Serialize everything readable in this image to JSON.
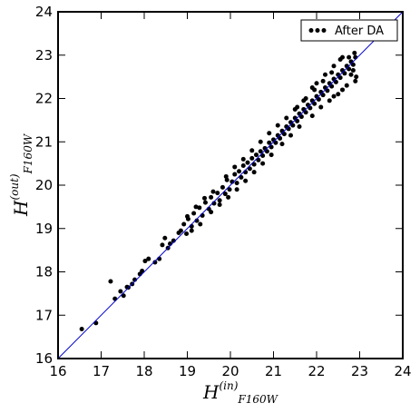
{
  "chart_data": {
    "type": "scatter",
    "title": "",
    "xlabel": {
      "base": "H",
      "sup": "(in)",
      "sub": "F160W"
    },
    "ylabel": {
      "base": "H",
      "sup": "(out)",
      "sub": "F160W"
    },
    "xlim": [
      16,
      24
    ],
    "ylim": [
      16,
      24
    ],
    "xticks": [
      "16",
      "17",
      "18",
      "19",
      "20",
      "21",
      "22",
      "23",
      "24"
    ],
    "yticks": [
      "16",
      "17",
      "18",
      "19",
      "20",
      "21",
      "22",
      "23",
      "24"
    ],
    "grid": false,
    "legend": {
      "position": "top-right"
    },
    "reference_line": {
      "label": "",
      "x": [
        16,
        24
      ],
      "y": [
        16,
        24
      ],
      "color": "#0000cc"
    },
    "series": [
      {
        "name": "After DA",
        "color": "#000000",
        "marker": "dot",
        "points": [
          [
            16.55,
            16.68
          ],
          [
            16.88,
            16.82
          ],
          [
            17.22,
            17.78
          ],
          [
            17.32,
            17.38
          ],
          [
            17.45,
            17.55
          ],
          [
            17.52,
            17.45
          ],
          [
            17.63,
            17.64
          ],
          [
            17.72,
            17.72
          ],
          [
            17.78,
            17.82
          ],
          [
            17.95,
            18.02
          ],
          [
            18.02,
            18.25
          ],
          [
            18.25,
            18.22
          ],
          [
            18.35,
            18.3
          ],
          [
            18.42,
            18.62
          ],
          [
            18.48,
            18.78
          ],
          [
            18.55,
            18.55
          ],
          [
            18.68,
            18.72
          ],
          [
            18.85,
            18.95
          ],
          [
            18.92,
            19.1
          ],
          [
            18.98,
            18.88
          ],
          [
            19.02,
            19.22
          ],
          [
            19.1,
            19.05
          ],
          [
            19.15,
            19.35
          ],
          [
            19.22,
            19.18
          ],
          [
            19.28,
            19.48
          ],
          [
            19.35,
            19.3
          ],
          [
            19.42,
            19.6
          ],
          [
            19.5,
            19.45
          ],
          [
            19.55,
            19.72
          ],
          [
            19.62,
            19.58
          ],
          [
            19.7,
            19.82
          ],
          [
            19.75,
            19.65
          ],
          [
            19.82,
            19.95
          ],
          [
            19.88,
            19.8
          ],
          [
            19.92,
            20.12
          ],
          [
            19.98,
            19.9
          ],
          [
            20.04,
            20.08
          ],
          [
            20.1,
            20.25
          ],
          [
            20.15,
            20.05
          ],
          [
            20.2,
            20.32
          ],
          [
            20.25,
            20.18
          ],
          [
            20.3,
            20.45
          ],
          [
            20.35,
            20.3
          ],
          [
            20.4,
            20.52
          ],
          [
            20.45,
            20.38
          ],
          [
            20.5,
            20.62
          ],
          [
            20.55,
            20.48
          ],
          [
            20.6,
            20.7
          ],
          [
            20.65,
            20.58
          ],
          [
            20.7,
            20.78
          ],
          [
            20.75,
            20.68
          ],
          [
            20.8,
            20.85
          ],
          [
            20.85,
            20.78
          ],
          [
            20.9,
            20.98
          ],
          [
            20.95,
            20.88
          ],
          [
            21.0,
            21.05
          ],
          [
            21.05,
            20.98
          ],
          [
            21.1,
            21.15
          ],
          [
            21.15,
            21.08
          ],
          [
            21.2,
            21.25
          ],
          [
            21.25,
            21.18
          ],
          [
            21.3,
            21.35
          ],
          [
            21.35,
            21.3
          ],
          [
            21.4,
            21.45
          ],
          [
            21.45,
            21.38
          ],
          [
            21.5,
            21.55
          ],
          [
            21.55,
            21.48
          ],
          [
            21.6,
            21.65
          ],
          [
            21.65,
            21.58
          ],
          [
            21.7,
            21.75
          ],
          [
            21.75,
            21.68
          ],
          [
            21.8,
            21.85
          ],
          [
            21.85,
            21.78
          ],
          [
            21.9,
            21.95
          ],
          [
            21.95,
            21.88
          ],
          [
            22.0,
            22.05
          ],
          [
            22.05,
            21.98
          ],
          [
            22.1,
            22.15
          ],
          [
            22.15,
            22.08
          ],
          [
            22.2,
            22.25
          ],
          [
            22.25,
            22.18
          ],
          [
            22.3,
            22.35
          ],
          [
            22.35,
            22.28
          ],
          [
            22.4,
            22.45
          ],
          [
            22.45,
            22.38
          ],
          [
            22.5,
            22.55
          ],
          [
            22.55,
            22.48
          ],
          [
            22.6,
            22.65
          ],
          [
            22.65,
            22.58
          ],
          [
            22.7,
            22.75
          ],
          [
            22.75,
            22.68
          ],
          [
            22.8,
            22.85
          ],
          [
            22.85,
            22.78
          ],
          [
            22.9,
            22.95
          ],
          [
            22.92,
            22.5
          ],
          [
            22.88,
            23.05
          ],
          [
            22.6,
            22.95
          ],
          [
            22.4,
            22.75
          ],
          [
            22.2,
            22.55
          ],
          [
            22.0,
            22.35
          ],
          [
            21.9,
            22.25
          ],
          [
            21.7,
            21.95
          ],
          [
            21.5,
            21.75
          ],
          [
            21.3,
            21.55
          ],
          [
            21.1,
            21.38
          ],
          [
            20.9,
            21.2
          ],
          [
            20.7,
            21.0
          ],
          [
            20.5,
            20.8
          ],
          [
            20.3,
            20.6
          ],
          [
            20.1,
            20.42
          ],
          [
            19.9,
            20.2
          ],
          [
            19.6,
            19.85
          ],
          [
            19.4,
            19.7
          ],
          [
            19.2,
            19.5
          ],
          [
            19.0,
            19.28
          ],
          [
            18.8,
            18.9
          ],
          [
            18.6,
            18.65
          ],
          [
            18.1,
            18.3
          ],
          [
            17.9,
            17.95
          ],
          [
            17.6,
            17.65
          ],
          [
            22.3,
            21.95
          ],
          [
            22.5,
            22.1
          ],
          [
            22.7,
            22.3
          ],
          [
            22.9,
            22.4
          ],
          [
            22.8,
            22.55
          ],
          [
            22.1,
            21.8
          ],
          [
            21.9,
            21.6
          ],
          [
            21.6,
            21.35
          ],
          [
            21.4,
            21.15
          ],
          [
            21.2,
            20.95
          ],
          [
            20.95,
            20.7
          ],
          [
            20.75,
            20.5
          ],
          [
            20.55,
            20.3
          ],
          [
            20.35,
            20.1
          ],
          [
            20.15,
            19.9
          ],
          [
            19.95,
            19.72
          ],
          [
            19.75,
            19.55
          ],
          [
            19.55,
            19.38
          ],
          [
            19.3,
            19.1
          ],
          [
            19.1,
            18.95
          ],
          [
            22.6,
            22.2
          ],
          [
            22.4,
            22.05
          ],
          [
            22.85,
            22.65
          ],
          [
            22.75,
            22.95
          ],
          [
            22.55,
            22.9
          ],
          [
            22.35,
            22.6
          ],
          [
            22.15,
            22.4
          ],
          [
            21.95,
            22.2
          ],
          [
            21.75,
            22.0
          ],
          [
            21.55,
            21.8
          ]
        ]
      }
    ]
  }
}
